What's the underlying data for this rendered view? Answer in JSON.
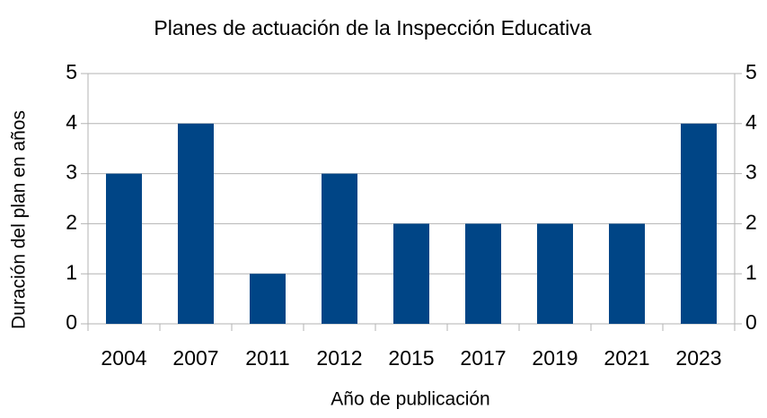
{
  "chart_data": {
    "type": "bar",
    "title": "Planes de actuación de la Inspección Educativa",
    "x_label": "Año de publicación",
    "y_label": "Duración del plan en años",
    "categories": [
      "2004",
      "2007",
      "2011",
      "2012",
      "2015",
      "2017",
      "2019",
      "2021",
      "2023"
    ],
    "values": [
      3,
      4,
      1,
      3,
      2,
      2,
      2,
      2,
      4
    ],
    "color": "#004586",
    "ylim": [
      0,
      5
    ],
    "yticks": [
      0,
      1,
      2,
      3,
      4,
      5
    ],
    "y2lim": [
      0,
      5
    ],
    "y2ticks": [
      0,
      1,
      2,
      3,
      4,
      5
    ],
    "grid": true
  }
}
